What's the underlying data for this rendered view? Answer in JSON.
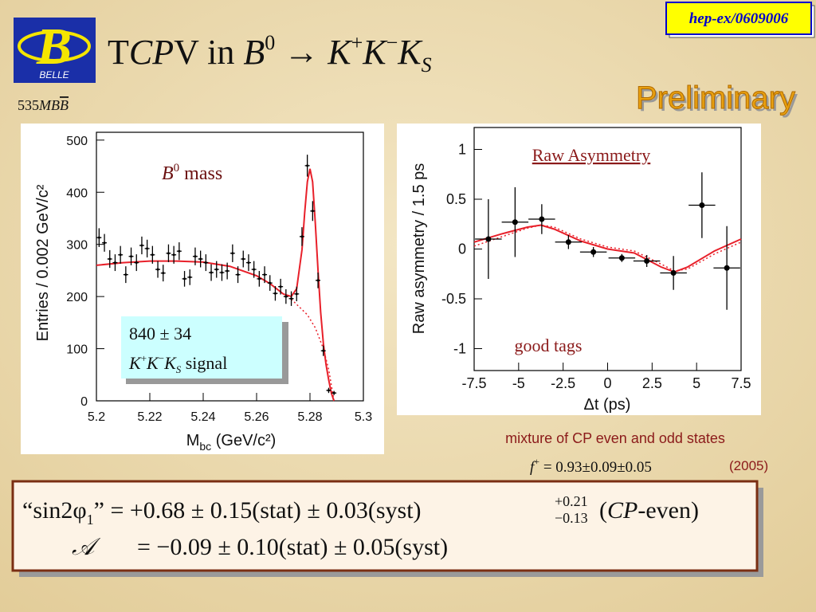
{
  "badge": "hep-ex/0609006",
  "logo": {
    "letter": "B",
    "name": "BELLE"
  },
  "title": [
    "T",
    "CP",
    "V in ",
    "B",
    "0",
    " → ",
    "K",
    "+",
    "K",
    "−",
    "K",
    "S"
  ],
  "preliminary": "Preliminary",
  "luminosity": [
    "535",
    "MB",
    "B"
  ],
  "chart_data": [
    {
      "type": "scatter",
      "y_label": "Entries / 0.002 GeV/c²",
      "x_label": [
        "M",
        "bc",
        " (GeV/c²)"
      ],
      "annotation": [
        "B",
        "0",
        " mass"
      ],
      "signal_box": [
        "840 ± 34",
        [
          "K",
          "+",
          "K",
          "−",
          "K",
          "S",
          " signal"
        ]
      ],
      "xlim": [
        5.2,
        5.3
      ],
      "ylim": [
        0,
        515
      ],
      "xticks": [
        5.2,
        5.22,
        5.24,
        5.26,
        5.28,
        5.3
      ],
      "yticks": [
        0,
        100,
        200,
        300,
        400,
        500
      ],
      "point_color": "#000000",
      "x": [
        5.201,
        5.203,
        5.205,
        5.207,
        5.209,
        5.211,
        5.213,
        5.215,
        5.217,
        5.219,
        5.221,
        5.223,
        5.225,
        5.227,
        5.229,
        5.231,
        5.233,
        5.235,
        5.237,
        5.239,
        5.241,
        5.243,
        5.245,
        5.247,
        5.249,
        5.251,
        5.253,
        5.255,
        5.257,
        5.259,
        5.261,
        5.263,
        5.265,
        5.267,
        5.269,
        5.271,
        5.273,
        5.275,
        5.277,
        5.279,
        5.281,
        5.283,
        5.285,
        5.287,
        5.289
      ],
      "values": [
        313,
        303,
        272,
        265,
        280,
        242,
        277,
        265,
        298,
        292,
        280,
        252,
        245,
        283,
        280,
        287,
        234,
        237,
        277,
        272,
        265,
        246,
        252,
        246,
        249,
        283,
        242,
        272,
        265,
        252,
        234,
        242,
        226,
        206,
        219,
        200,
        196,
        205,
        315,
        451,
        364,
        231,
        96,
        20,
        15
      ],
      "errors": [
        18,
        17,
        17,
        16,
        17,
        16,
        17,
        16,
        17,
        17,
        17,
        16,
        16,
        17,
        17,
        17,
        15,
        15,
        17,
        16,
        16,
        16,
        16,
        16,
        16,
        17,
        16,
        16,
        16,
        16,
        15,
        16,
        15,
        14,
        15,
        14,
        14,
        14,
        18,
        21,
        19,
        15,
        10,
        5,
        4
      ],
      "curves": [
        {
          "color": "#e8202a",
          "dash": false,
          "x": [
            5.2,
            5.21,
            5.22,
            5.23,
            5.24,
            5.25,
            5.26,
            5.265,
            5.27,
            5.273,
            5.275,
            5.277,
            5.278,
            5.279,
            5.28,
            5.281,
            5.282,
            5.283,
            5.284,
            5.285,
            5.286,
            5.287,
            5.288,
            5.289
          ],
          "values": [
            260,
            265,
            268,
            268,
            266,
            258,
            240,
            225,
            205,
            200,
            215,
            290,
            360,
            420,
            445,
            420,
            340,
            250,
            170,
            110,
            70,
            40,
            15,
            0
          ]
        },
        {
          "color": "#e8202a",
          "dash": true,
          "x": [
            5.273,
            5.276,
            5.279,
            5.282,
            5.285,
            5.287,
            5.289
          ],
          "values": [
            195,
            180,
            165,
            140,
            100,
            60,
            0
          ]
        }
      ]
    },
    {
      "type": "scatter",
      "title": "Raw Asymmetry",
      "annotation": "good tags",
      "y_label": "Raw asymmetry / 1.5 ps",
      "x_label": "Δt (ps)",
      "xlim": [
        -7.5,
        7.5
      ],
      "ylim": [
        -1.22,
        1.22
      ],
      "xticks": [
        -7.5,
        -5,
        -2.5,
        0,
        2.5,
        5,
        7.5
      ],
      "yticks": [
        -1,
        -0.5,
        0,
        0.5,
        1
      ],
      "point_color": "#000000",
      "x": [
        -6.7,
        -5.2,
        -3.7,
        -2.2,
        -0.8,
        0.8,
        2.2,
        3.7,
        5.3,
        6.7
      ],
      "x_errors": [
        0.75,
        0.75,
        0.75,
        0.75,
        0.75,
        0.75,
        0.75,
        0.75,
        0.75,
        0.75
      ],
      "values": [
        0.1,
        0.27,
        0.3,
        0.07,
        -0.03,
        -0.09,
        -0.12,
        -0.24,
        0.44,
        -0.19
      ],
      "errors": [
        0.4,
        0.35,
        0.15,
        0.07,
        0.05,
        0.04,
        0.06,
        0.17,
        0.33,
        0.42
      ],
      "curves": [
        {
          "color": "#e8202a",
          "dash": false,
          "x": [
            -7.5,
            -6,
            -4.5,
            -3.75,
            -3,
            -1.5,
            0,
            1.5,
            3,
            3.75,
            4.5,
            6,
            7.5
          ],
          "values": [
            0.07,
            0.15,
            0.22,
            0.24,
            0.2,
            0.08,
            0,
            -0.04,
            -0.18,
            -0.23,
            -0.18,
            -0.02,
            0.1
          ]
        },
        {
          "color": "#e8202a",
          "dash": true,
          "x": [
            -7.5,
            -6,
            -4.5,
            -3.75,
            -3,
            -1.5,
            0,
            1.5,
            3,
            3.75,
            4.5,
            6,
            7.5
          ],
          "values": [
            0.03,
            0.12,
            0.21,
            0.24,
            0.22,
            0.1,
            0.02,
            -0.02,
            -0.15,
            -0.22,
            -0.2,
            -0.05,
            0.07
          ]
        }
      ]
    }
  ],
  "mixture_note": "mixture of CP even and odd states",
  "fraction": [
    "f",
    "+",
    " = 0.93±0.09±0.05"
  ],
  "year": "(2005)",
  "result": {
    "line1": [
      "“sin2φ",
      "1",
      "” = +0.68 ± 0.15(stat) ± 0.03(syst) ",
      "+0.21",
      "−0.13",
      "(",
      "CP",
      "-even)"
    ],
    "line2": [
      "𝒜",
      "= −0.09 ± 0.10(stat) ± 0.05(syst)"
    ]
  }
}
